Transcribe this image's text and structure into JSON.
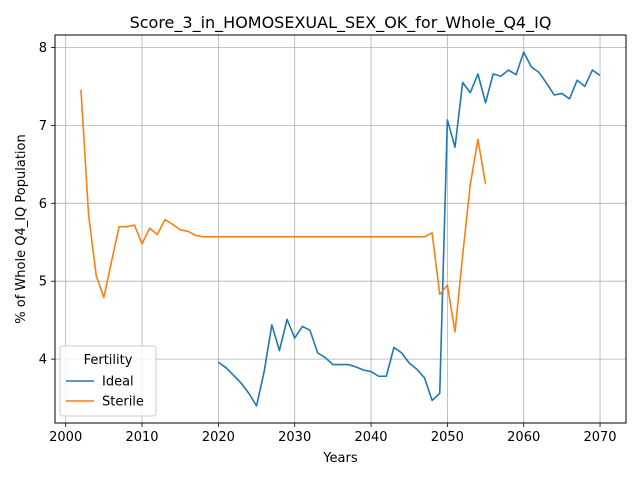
{
  "chart_data": {
    "type": "line",
    "title": "Score_3_in_HOMOSEXUAL_SEX_OK_for_Whole_Q4_IQ",
    "xlabel": "Years",
    "ylabel": "% of Whole Q4_IQ Population",
    "xlim": [
      1998.6,
      2073.4
    ],
    "ylim": [
      3.18,
      8.16
    ],
    "xticks": [
      2000,
      2010,
      2020,
      2030,
      2040,
      2050,
      2060,
      2070
    ],
    "yticks": [
      4,
      5,
      6,
      7,
      8
    ],
    "grid": true,
    "legend": {
      "title": "Fertility",
      "placement": "lower-left"
    },
    "series": [
      {
        "name": "Ideal",
        "color": "#1f77b4",
        "x": [
          2020,
          2021,
          2022,
          2023,
          2024,
          2025,
          2026,
          2027,
          2028,
          2029,
          2030,
          2031,
          2032,
          2033,
          2034,
          2035,
          2036,
          2037,
          2038,
          2039,
          2040,
          2041,
          2042,
          2043,
          2044,
          2045,
          2046,
          2047,
          2048,
          2049,
          2050,
          2051,
          2052,
          2053,
          2054,
          2055,
          2056,
          2057,
          2058,
          2059,
          2060,
          2061,
          2062,
          2063,
          2064,
          2065,
          2066,
          2067,
          2068,
          2069,
          2070
        ],
        "y": [
          3.96,
          3.89,
          3.79,
          3.69,
          3.56,
          3.4,
          3.84,
          4.44,
          4.11,
          4.51,
          4.27,
          4.42,
          4.37,
          4.08,
          4.02,
          3.93,
          3.93,
          3.93,
          3.9,
          3.86,
          3.84,
          3.78,
          3.78,
          4.15,
          4.08,
          3.95,
          3.87,
          3.76,
          3.47,
          3.56,
          7.07,
          6.72,
          7.55,
          7.42,
          7.66,
          7.29,
          7.66,
          7.63,
          7.71,
          7.65,
          7.94,
          7.75,
          7.68,
          7.54,
          7.39,
          7.41,
          7.34,
          7.58,
          7.5,
          7.71,
          7.64
        ]
      },
      {
        "name": "Sterile",
        "color": "#ff7f0e",
        "x": [
          2002,
          2003,
          2004,
          2005,
          2006,
          2007,
          2008,
          2009,
          2010,
          2011,
          2012,
          2013,
          2014,
          2015,
          2016,
          2017,
          2018,
          2019,
          2020,
          2021,
          2022,
          2023,
          2024,
          2025,
          2026,
          2027,
          2028,
          2029,
          2030,
          2031,
          2032,
          2033,
          2034,
          2035,
          2036,
          2037,
          2038,
          2039,
          2040,
          2041,
          2042,
          2043,
          2044,
          2045,
          2046,
          2047,
          2048,
          2049,
          2050,
          2051,
          2052,
          2053,
          2054,
          2055
        ],
        "y": [
          7.46,
          5.85,
          5.07,
          4.79,
          5.25,
          5.7,
          5.7,
          5.72,
          5.48,
          5.68,
          5.6,
          5.79,
          5.73,
          5.66,
          5.64,
          5.59,
          5.57,
          5.57,
          5.57,
          5.57,
          5.57,
          5.57,
          5.57,
          5.57,
          5.57,
          5.57,
          5.57,
          5.57,
          5.57,
          5.57,
          5.57,
          5.57,
          5.57,
          5.57,
          5.57,
          5.57,
          5.57,
          5.57,
          5.57,
          5.57,
          5.57,
          5.57,
          5.57,
          5.57,
          5.57,
          5.57,
          5.62,
          4.83,
          4.95,
          4.35,
          5.33,
          6.24,
          6.82,
          6.25
        ]
      }
    ]
  }
}
